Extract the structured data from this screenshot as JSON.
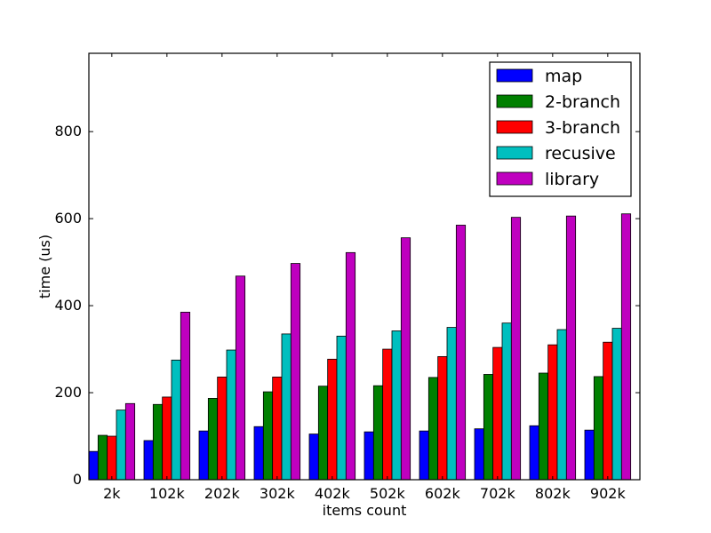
{
  "chart_data": {
    "type": "bar",
    "title": "",
    "xlabel": "items count",
    "ylabel": "time (us)",
    "ylim": [
      0,
      980
    ],
    "yticks": [
      0,
      200,
      400,
      600,
      800
    ],
    "grid": false,
    "legend_position": "top-right",
    "categories": [
      "2k",
      "102k",
      "202k",
      "302k",
      "402k",
      "502k",
      "602k",
      "702k",
      "802k",
      "902k"
    ],
    "series": [
      {
        "name": "map",
        "color": "#0000ff",
        "values": [
          65,
          90,
          112,
          122,
          105,
          110,
          112,
          117,
          124,
          114
        ]
      },
      {
        "name": "2-branch",
        "color": "#008000",
        "values": [
          102,
          173,
          187,
          202,
          215,
          216,
          235,
          242,
          245,
          237
        ]
      },
      {
        "name": "3-branch",
        "color": "#ff0000",
        "values": [
          100,
          190,
          236,
          236,
          277,
          300,
          283,
          304,
          310,
          316
        ]
      },
      {
        "name": "recusive",
        "color": "#00bfbf",
        "values": [
          160,
          275,
          298,
          335,
          330,
          342,
          350,
          360,
          345,
          348
        ]
      },
      {
        "name": "library",
        "color": "#bf00bf",
        "values": [
          175,
          385,
          468,
          497,
          522,
          556,
          585,
          603,
          606,
          611
        ]
      }
    ]
  }
}
